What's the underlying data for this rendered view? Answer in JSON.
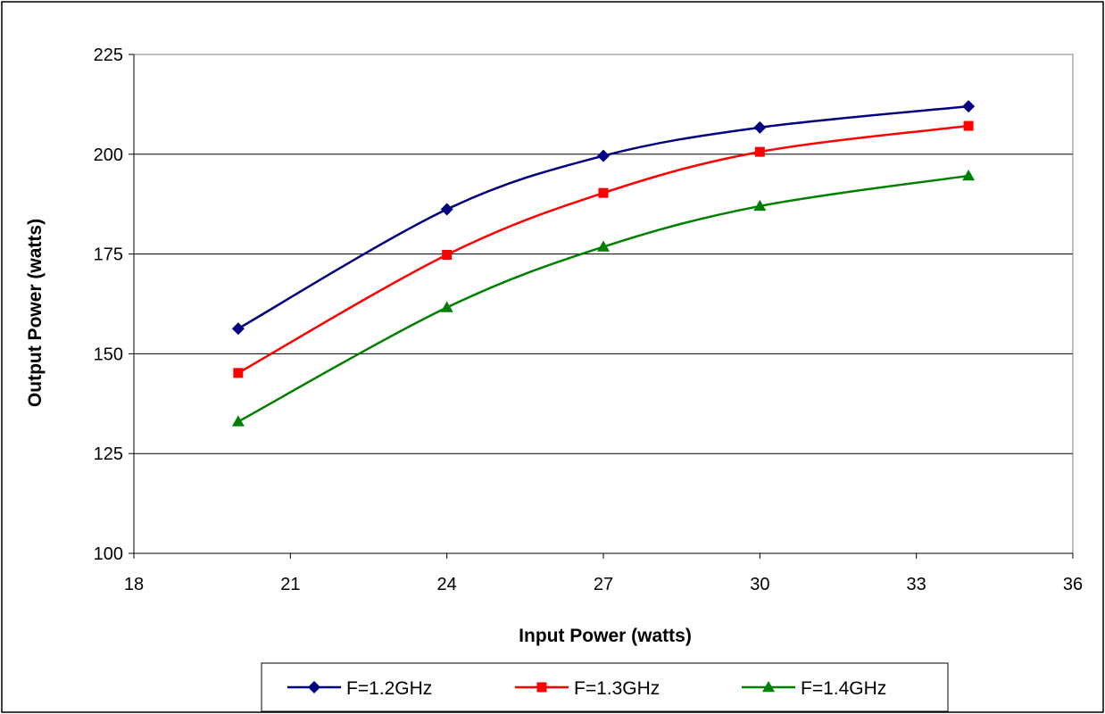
{
  "chart_data": {
    "type": "line",
    "title": "",
    "xlabel": "Input Power (watts)",
    "ylabel": "Output Power (watts)",
    "xlim": [
      18,
      36
    ],
    "ylim": [
      100,
      225
    ],
    "xticks": [
      18,
      21,
      24,
      27,
      30,
      33,
      36
    ],
    "yticks": [
      100,
      125,
      150,
      175,
      200,
      225
    ],
    "grid": {
      "y": true,
      "x": false
    },
    "legend_position": "bottom",
    "series": [
      {
        "name": "F=1.2GHz",
        "color": "#000080",
        "marker": "diamond",
        "x": [
          20,
          24,
          27,
          30,
          34
        ],
        "y": [
          156.3,
          186.2,
          199.6,
          206.7,
          212.0
        ]
      },
      {
        "name": "F=1.3GHz",
        "color": "#ff0000",
        "marker": "square",
        "x": [
          20,
          24,
          27,
          30,
          34
        ],
        "y": [
          145.2,
          174.8,
          190.3,
          200.6,
          207.1
        ]
      },
      {
        "name": "F=1.4GHz",
        "color": "#008000",
        "marker": "triangle",
        "x": [
          20,
          24,
          27,
          30,
          34
        ],
        "y": [
          133.0,
          161.6,
          176.8,
          187.0,
          194.6
        ]
      }
    ]
  }
}
